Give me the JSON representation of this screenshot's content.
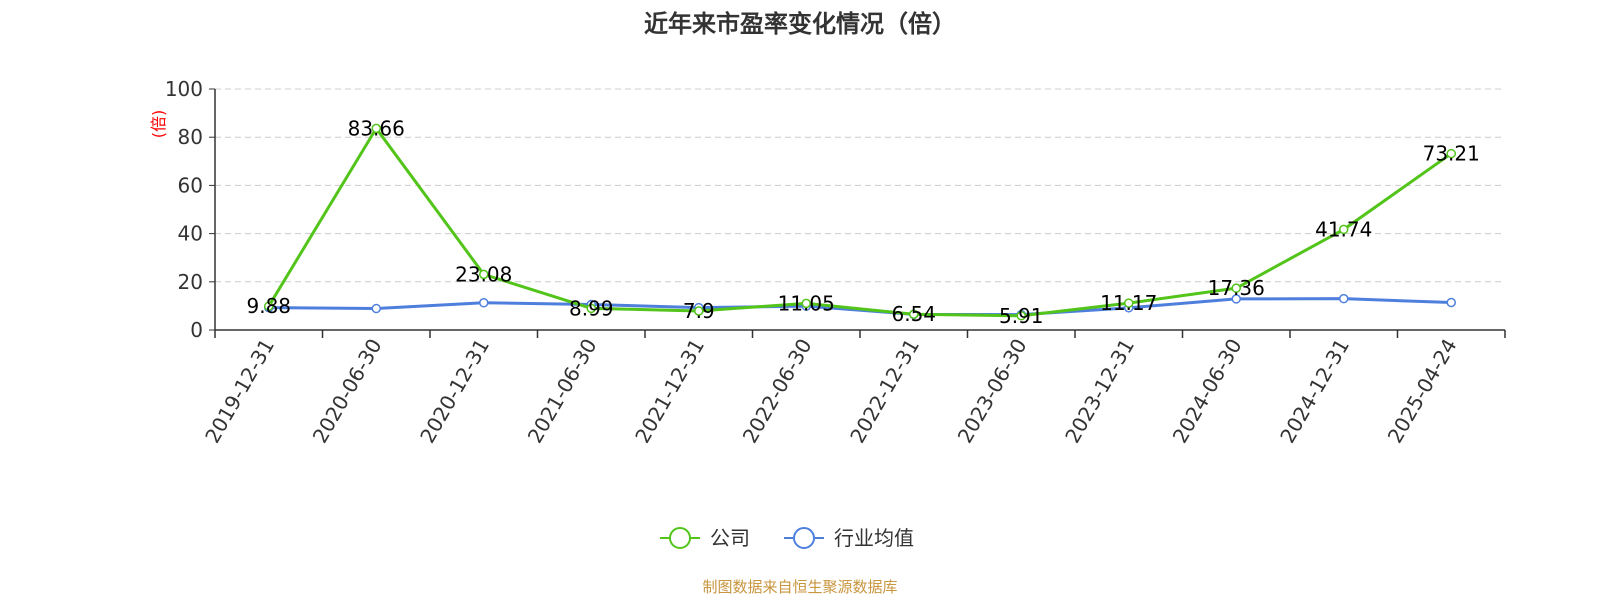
{
  "colors": {
    "company": "#52c41a",
    "industry": "#4e7fdc",
    "ylabel": "#ff0000",
    "source": "#c8963e",
    "grid": "#cccccc",
    "axis": "#333333"
  },
  "source_text": "制图数据来自恒生聚源数据库",
  "chart_data": {
    "type": "line",
    "title": "近年来市盈率变化情况（倍）",
    "ylabel": "(倍)",
    "ylim": [
      0,
      100
    ],
    "yticks": [
      0,
      20,
      40,
      60,
      80,
      100
    ],
    "grid": true,
    "legend_position": "bottom-center",
    "categories": [
      "2019-12-31",
      "2020-06-30",
      "2020-12-31",
      "2021-06-30",
      "2021-12-31",
      "2022-06-30",
      "2022-12-31",
      "2023-06-30",
      "2023-12-31",
      "2024-06-30",
      "2024-12-31",
      "2025-04-24"
    ],
    "series": [
      {
        "name": "公司",
        "values": [
          9.88,
          83.66,
          23.08,
          8.99,
          7.9,
          11.05,
          6.54,
          5.91,
          11.17,
          17.36,
          41.74,
          73.21
        ],
        "labels": [
          "9.88",
          "83.66",
          "23.08",
          "8.99",
          "7.9",
          "11.05",
          "6.54",
          "5.91",
          "11.17",
          "17.36",
          "41.74",
          "73.21"
        ]
      },
      {
        "name": "行业均值",
        "values": [
          9.3,
          8.9,
          11.3,
          10.6,
          9.3,
          9.9,
          6.5,
          6.4,
          9.2,
          12.9,
          13.0,
          11.4
        ]
      }
    ]
  }
}
